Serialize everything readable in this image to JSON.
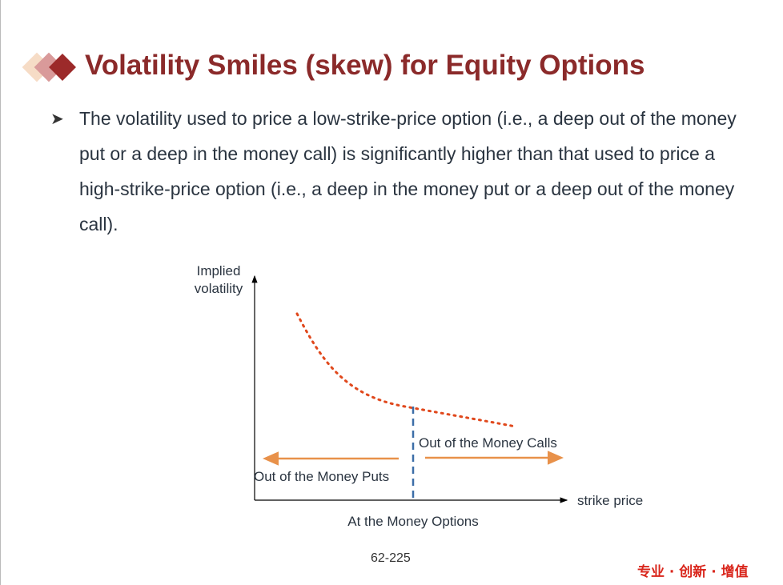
{
  "header": {
    "title": "Volatility Smiles (skew) for Equity Options"
  },
  "body": {
    "bullets": [
      "The volatility used to price a low-strike-price option (i.e., a deep out of the money put or a deep in the money call) is significantly higher than that used to price a high-strike-price option (i.e., a deep in the money put or a deep out of the money call)."
    ]
  },
  "diagram": {
    "y_axis_label": [
      "Implied",
      "volatility"
    ],
    "x_axis_label": "strike price",
    "calls_label": "Out of the Money Calls",
    "puts_label": "Out of the Money Puts",
    "atm_label": "At the Money Options"
  },
  "footer": {
    "page_number": "62-225",
    "slogan": "专业 · 创新 · 增值"
  }
}
